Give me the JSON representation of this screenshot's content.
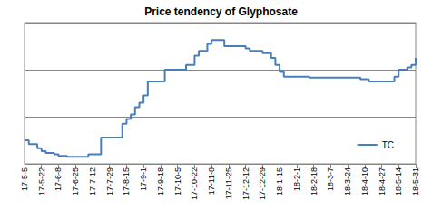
{
  "chart_data": {
    "type": "line",
    "title": "Price tendency of Glyphosate",
    "categories": [
      "17-5-5",
      null,
      null,
      null,
      "17-5-22",
      null,
      null,
      null,
      "17-6-8",
      null,
      null,
      null,
      "17-6-25",
      null,
      null,
      null,
      "17-7-12",
      null,
      null,
      null,
      "17-7-29",
      null,
      null,
      null,
      "17-8-15",
      null,
      null,
      null,
      "17-9-1",
      null,
      null,
      null,
      "17-9-18",
      null,
      null,
      null,
      "17-10-5",
      null,
      null,
      null,
      "17-10-22",
      null,
      null,
      null,
      "17-11-8",
      null,
      null,
      null,
      "17-11-25",
      null,
      null,
      null,
      "17-12-12",
      null,
      null,
      null,
      "17-12-29",
      null,
      null,
      null,
      "18-1-15",
      null,
      null,
      null,
      "18-2-1",
      null,
      null,
      null,
      "18-2-18",
      null,
      null,
      null,
      "18-3-7",
      null,
      null,
      null,
      "18-3-24",
      null,
      null,
      null,
      "18-4-10",
      null,
      null,
      null,
      "18-4-27",
      null,
      null,
      null,
      "18-5-14",
      null,
      null,
      null,
      "18-5-31"
    ],
    "series": [
      {
        "name": "TC",
        "color": "#4a7ebb",
        "line_style": "solid",
        "marker": "none",
        "values": [
          0.5,
          0.42,
          0.42,
          0.33,
          0.27,
          0.23,
          0.23,
          0.2,
          0.17,
          0.17,
          0.15,
          0.15,
          0.15,
          0.15,
          0.15,
          0.2,
          0.2,
          0.2,
          0.56,
          0.56,
          0.56,
          0.56,
          0.56,
          0.85,
          0.95,
          1.05,
          1.2,
          1.3,
          1.45,
          1.75,
          1.75,
          1.75,
          1.75,
          2.0,
          2.0,
          2.0,
          2.0,
          2.0,
          2.1,
          2.1,
          2.3,
          2.4,
          2.4,
          2.55,
          2.63,
          2.63,
          2.63,
          2.5,
          2.5,
          2.5,
          2.5,
          2.5,
          2.45,
          2.4,
          2.4,
          2.4,
          2.35,
          2.35,
          2.25,
          2.1,
          1.95,
          1.85,
          1.85,
          1.85,
          1.85,
          1.85,
          1.85,
          1.83,
          1.83,
          1.83,
          1.83,
          1.83,
          1.83,
          1.83,
          1.83,
          1.83,
          1.83,
          1.83,
          1.83,
          1.8,
          1.8,
          1.75,
          1.75,
          1.75,
          1.75,
          1.75,
          1.75,
          1.85,
          2.0,
          2.0,
          2.05,
          2.1,
          2.25
        ]
      }
    ],
    "ylim": [
      0,
      3
    ],
    "yticks": [
      0,
      1,
      2,
      3
    ],
    "grid": true,
    "legend": "lower right",
    "tick_labels": "x"
  }
}
